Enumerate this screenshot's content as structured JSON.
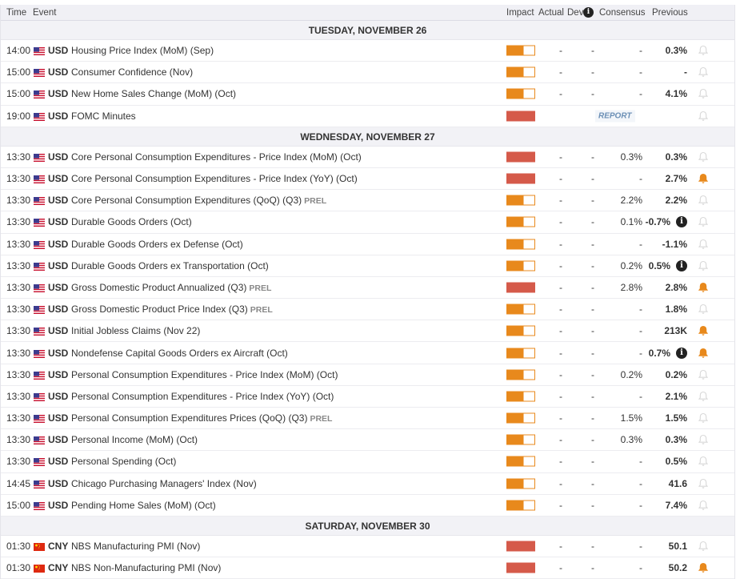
{
  "header": {
    "time": "Time",
    "event": "Event",
    "impact": "Impact",
    "actual": "Actual",
    "dev": "Dev",
    "dev_info_icon": "i",
    "consensus": "Consensus",
    "previous": "Previous"
  },
  "colors": {
    "medium": "#e8891c",
    "high": "#d55a4a",
    "bell_active": "#e8891c",
    "bell_inactive": "#d8d8d8"
  },
  "days": [
    {
      "label": "TUESDAY, NOVEMBER 26",
      "events": [
        {
          "time": "14:00",
          "currency": "USD",
          "flag": "us",
          "event": "Housing Price Index (MoM) (Sep)",
          "impact": "medium",
          "actual": "-",
          "dev": "-",
          "consensus": "-",
          "previous": "0.3%",
          "alert": false
        },
        {
          "time": "15:00",
          "currency": "USD",
          "flag": "us",
          "event": "Consumer Confidence (Nov)",
          "impact": "medium",
          "actual": "-",
          "dev": "-",
          "consensus": "-",
          "previous": "-",
          "alert": false
        },
        {
          "time": "15:00",
          "currency": "USD",
          "flag": "us",
          "event": "New Home Sales Change (MoM) (Oct)",
          "impact": "medium",
          "actual": "-",
          "dev": "-",
          "consensus": "-",
          "previous": "4.1%",
          "alert": false
        },
        {
          "time": "19:00",
          "currency": "USD",
          "flag": "us",
          "event": "FOMC Minutes",
          "impact": "high",
          "report": "REPORT",
          "alert": false
        }
      ]
    },
    {
      "label": "WEDNESDAY, NOVEMBER 27",
      "events": [
        {
          "time": "13:30",
          "currency": "USD",
          "flag": "us",
          "event": "Core Personal Consumption Expenditures - Price Index (MoM) (Oct)",
          "impact": "high",
          "actual": "-",
          "dev": "-",
          "consensus": "0.3%",
          "previous": "0.3%",
          "alert": false
        },
        {
          "time": "13:30",
          "currency": "USD",
          "flag": "us",
          "event": "Core Personal Consumption Expenditures - Price Index (YoY) (Oct)",
          "impact": "high",
          "actual": "-",
          "dev": "-",
          "consensus": "-",
          "previous": "2.7%",
          "alert": true
        },
        {
          "time": "13:30",
          "currency": "USD",
          "flag": "us",
          "event": "Core Personal Consumption Expenditures (QoQ) (Q3)",
          "tag": "PREL",
          "impact": "medium",
          "actual": "-",
          "dev": "-",
          "consensus": "2.2%",
          "previous": "2.2%",
          "alert": false
        },
        {
          "time": "13:30",
          "currency": "USD",
          "flag": "us",
          "event": "Durable Goods Orders (Oct)",
          "impact": "medium",
          "actual": "-",
          "dev": "-",
          "consensus": "0.1%",
          "previous": "-0.7%",
          "revised": true,
          "alert": false
        },
        {
          "time": "13:30",
          "currency": "USD",
          "flag": "us",
          "event": "Durable Goods Orders ex Defense (Oct)",
          "impact": "medium",
          "actual": "-",
          "dev": "-",
          "consensus": "-",
          "previous": "-1.1%",
          "alert": false
        },
        {
          "time": "13:30",
          "currency": "USD",
          "flag": "us",
          "event": "Durable Goods Orders ex Transportation (Oct)",
          "impact": "medium",
          "actual": "-",
          "dev": "-",
          "consensus": "0.2%",
          "previous": "0.5%",
          "revised": true,
          "alert": false
        },
        {
          "time": "13:30",
          "currency": "USD",
          "flag": "us",
          "event": "Gross Domestic Product Annualized (Q3)",
          "tag": "PREL",
          "impact": "high",
          "actual": "-",
          "dev": "-",
          "consensus": "2.8%",
          "previous": "2.8%",
          "alert": true
        },
        {
          "time": "13:30",
          "currency": "USD",
          "flag": "us",
          "event": "Gross Domestic Product Price Index (Q3)",
          "tag": "PREL",
          "impact": "medium",
          "actual": "-",
          "dev": "-",
          "consensus": "-",
          "previous": "1.8%",
          "alert": false
        },
        {
          "time": "13:30",
          "currency": "USD",
          "flag": "us",
          "event": "Initial Jobless Claims (Nov 22)",
          "impact": "medium",
          "actual": "-",
          "dev": "-",
          "consensus": "-",
          "previous": "213K",
          "alert": true
        },
        {
          "time": "13:30",
          "currency": "USD",
          "flag": "us",
          "event": "Nondefense Capital Goods Orders ex Aircraft (Oct)",
          "impact": "medium",
          "actual": "-",
          "dev": "-",
          "consensus": "-",
          "previous": "0.7%",
          "revised": true,
          "alert": true
        },
        {
          "time": "13:30",
          "currency": "USD",
          "flag": "us",
          "event": "Personal Consumption Expenditures - Price Index (MoM) (Oct)",
          "impact": "medium",
          "actual": "-",
          "dev": "-",
          "consensus": "0.2%",
          "previous": "0.2%",
          "alert": false
        },
        {
          "time": "13:30",
          "currency": "USD",
          "flag": "us",
          "event": "Personal Consumption Expenditures - Price Index (YoY) (Oct)",
          "impact": "medium",
          "actual": "-",
          "dev": "-",
          "consensus": "-",
          "previous": "2.1%",
          "alert": false
        },
        {
          "time": "13:30",
          "currency": "USD",
          "flag": "us",
          "event": "Personal Consumption Expenditures Prices (QoQ) (Q3)",
          "tag": "PREL",
          "impact": "medium",
          "actual": "-",
          "dev": "-",
          "consensus": "1.5%",
          "previous": "1.5%",
          "alert": false
        },
        {
          "time": "13:30",
          "currency": "USD",
          "flag": "us",
          "event": "Personal Income (MoM) (Oct)",
          "impact": "medium",
          "actual": "-",
          "dev": "-",
          "consensus": "0.3%",
          "previous": "0.3%",
          "alert": false
        },
        {
          "time": "13:30",
          "currency": "USD",
          "flag": "us",
          "event": "Personal Spending (Oct)",
          "impact": "medium",
          "actual": "-",
          "dev": "-",
          "consensus": "-",
          "previous": "0.5%",
          "alert": false
        },
        {
          "time": "14:45",
          "currency": "USD",
          "flag": "us",
          "event": "Chicago Purchasing Managers' Index (Nov)",
          "impact": "medium",
          "actual": "-",
          "dev": "-",
          "consensus": "-",
          "previous": "41.6",
          "alert": false
        },
        {
          "time": "15:00",
          "currency": "USD",
          "flag": "us",
          "event": "Pending Home Sales (MoM) (Oct)",
          "impact": "medium",
          "actual": "-",
          "dev": "-",
          "consensus": "-",
          "previous": "7.4%",
          "alert": false
        }
      ]
    },
    {
      "label": "SATURDAY, NOVEMBER 30",
      "events": [
        {
          "time": "01:30",
          "currency": "CNY",
          "flag": "cn",
          "event": "NBS Manufacturing PMI (Nov)",
          "impact": "high",
          "actual": "-",
          "dev": "-",
          "consensus": "-",
          "previous": "50.1",
          "alert": false
        },
        {
          "time": "01:30",
          "currency": "CNY",
          "flag": "cn",
          "event": "NBS Non-Manufacturing PMI (Nov)",
          "impact": "high",
          "actual": "-",
          "dev": "-",
          "consensus": "-",
          "previous": "50.2",
          "alert": true
        }
      ]
    }
  ]
}
